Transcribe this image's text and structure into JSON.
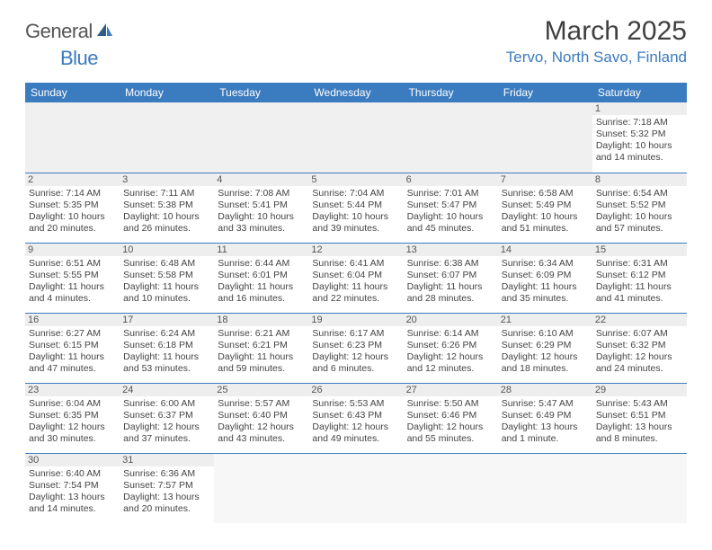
{
  "logo": {
    "text1": "General",
    "text2": "Blue"
  },
  "title": "March 2025",
  "location": "Tervo, North Savo, Finland",
  "colors": {
    "accent": "#3b7bbf",
    "text": "#3a3a3a",
    "grid_bg": "#eeeeee"
  },
  "weekdays": [
    "Sunday",
    "Monday",
    "Tuesday",
    "Wednesday",
    "Thursday",
    "Friday",
    "Saturday"
  ],
  "first_weekday_index": 6,
  "days": [
    {
      "n": 1,
      "sunrise": "7:18 AM",
      "sunset": "5:32 PM",
      "daylight": "10 hours and 14 minutes."
    },
    {
      "n": 2,
      "sunrise": "7:14 AM",
      "sunset": "5:35 PM",
      "daylight": "10 hours and 20 minutes."
    },
    {
      "n": 3,
      "sunrise": "7:11 AM",
      "sunset": "5:38 PM",
      "daylight": "10 hours and 26 minutes."
    },
    {
      "n": 4,
      "sunrise": "7:08 AM",
      "sunset": "5:41 PM",
      "daylight": "10 hours and 33 minutes."
    },
    {
      "n": 5,
      "sunrise": "7:04 AM",
      "sunset": "5:44 PM",
      "daylight": "10 hours and 39 minutes."
    },
    {
      "n": 6,
      "sunrise": "7:01 AM",
      "sunset": "5:47 PM",
      "daylight": "10 hours and 45 minutes."
    },
    {
      "n": 7,
      "sunrise": "6:58 AM",
      "sunset": "5:49 PM",
      "daylight": "10 hours and 51 minutes."
    },
    {
      "n": 8,
      "sunrise": "6:54 AM",
      "sunset": "5:52 PM",
      "daylight": "10 hours and 57 minutes."
    },
    {
      "n": 9,
      "sunrise": "6:51 AM",
      "sunset": "5:55 PM",
      "daylight": "11 hours and 4 minutes."
    },
    {
      "n": 10,
      "sunrise": "6:48 AM",
      "sunset": "5:58 PM",
      "daylight": "11 hours and 10 minutes."
    },
    {
      "n": 11,
      "sunrise": "6:44 AM",
      "sunset": "6:01 PM",
      "daylight": "11 hours and 16 minutes."
    },
    {
      "n": 12,
      "sunrise": "6:41 AM",
      "sunset": "6:04 PM",
      "daylight": "11 hours and 22 minutes."
    },
    {
      "n": 13,
      "sunrise": "6:38 AM",
      "sunset": "6:07 PM",
      "daylight": "11 hours and 28 minutes."
    },
    {
      "n": 14,
      "sunrise": "6:34 AM",
      "sunset": "6:09 PM",
      "daylight": "11 hours and 35 minutes."
    },
    {
      "n": 15,
      "sunrise": "6:31 AM",
      "sunset": "6:12 PM",
      "daylight": "11 hours and 41 minutes."
    },
    {
      "n": 16,
      "sunrise": "6:27 AM",
      "sunset": "6:15 PM",
      "daylight": "11 hours and 47 minutes."
    },
    {
      "n": 17,
      "sunrise": "6:24 AM",
      "sunset": "6:18 PM",
      "daylight": "11 hours and 53 minutes."
    },
    {
      "n": 18,
      "sunrise": "6:21 AM",
      "sunset": "6:21 PM",
      "daylight": "11 hours and 59 minutes."
    },
    {
      "n": 19,
      "sunrise": "6:17 AM",
      "sunset": "6:23 PM",
      "daylight": "12 hours and 6 minutes."
    },
    {
      "n": 20,
      "sunrise": "6:14 AM",
      "sunset": "6:26 PM",
      "daylight": "12 hours and 12 minutes."
    },
    {
      "n": 21,
      "sunrise": "6:10 AM",
      "sunset": "6:29 PM",
      "daylight": "12 hours and 18 minutes."
    },
    {
      "n": 22,
      "sunrise": "6:07 AM",
      "sunset": "6:32 PM",
      "daylight": "12 hours and 24 minutes."
    },
    {
      "n": 23,
      "sunrise": "6:04 AM",
      "sunset": "6:35 PM",
      "daylight": "12 hours and 30 minutes."
    },
    {
      "n": 24,
      "sunrise": "6:00 AM",
      "sunset": "6:37 PM",
      "daylight": "12 hours and 37 minutes."
    },
    {
      "n": 25,
      "sunrise": "5:57 AM",
      "sunset": "6:40 PM",
      "daylight": "12 hours and 43 minutes."
    },
    {
      "n": 26,
      "sunrise": "5:53 AM",
      "sunset": "6:43 PM",
      "daylight": "12 hours and 49 minutes."
    },
    {
      "n": 27,
      "sunrise": "5:50 AM",
      "sunset": "6:46 PM",
      "daylight": "12 hours and 55 minutes."
    },
    {
      "n": 28,
      "sunrise": "5:47 AM",
      "sunset": "6:49 PM",
      "daylight": "13 hours and 1 minute."
    },
    {
      "n": 29,
      "sunrise": "5:43 AM",
      "sunset": "6:51 PM",
      "daylight": "13 hours and 8 minutes."
    },
    {
      "n": 30,
      "sunrise": "6:40 AM",
      "sunset": "7:54 PM",
      "daylight": "13 hours and 14 minutes."
    },
    {
      "n": 31,
      "sunrise": "6:36 AM",
      "sunset": "7:57 PM",
      "daylight": "13 hours and 20 minutes."
    }
  ],
  "labels": {
    "sunrise": "Sunrise:",
    "sunset": "Sunset:",
    "daylight": "Daylight:"
  }
}
